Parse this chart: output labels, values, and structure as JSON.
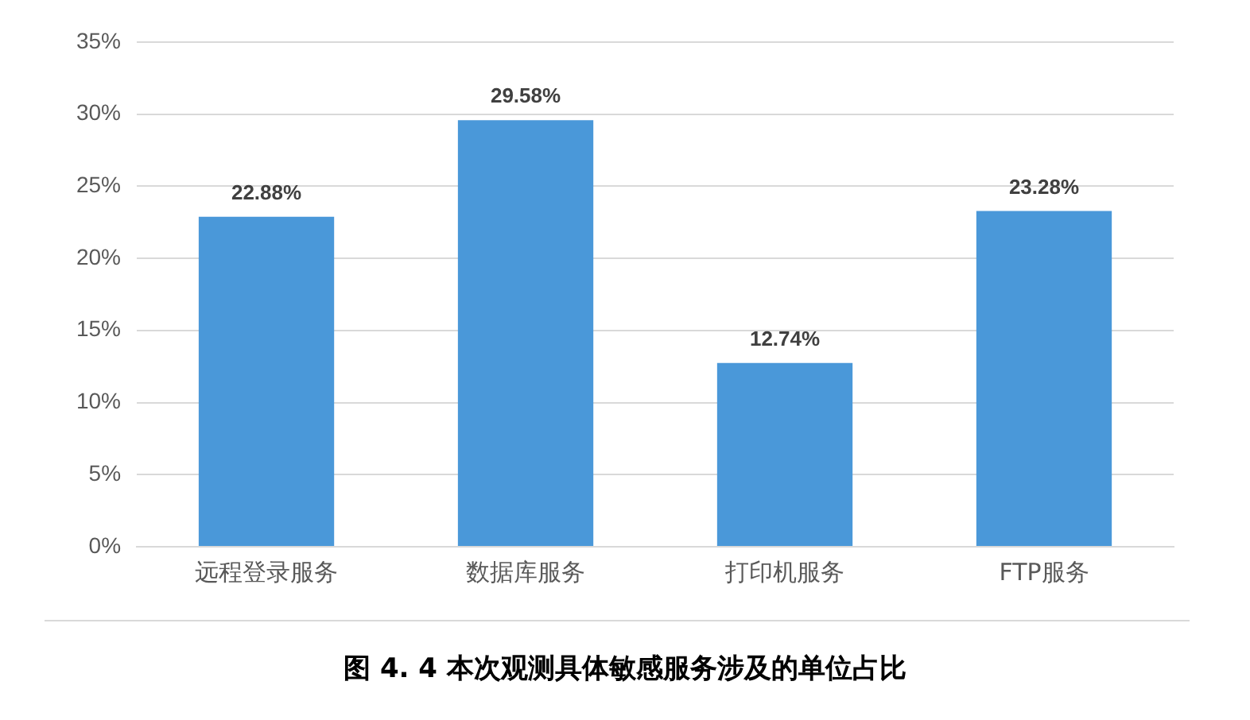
{
  "chart_data": {
    "type": "bar",
    "title": "图 4. 4  本次观测具体敏感服务涉及的单位占比",
    "categories": [
      "远程登录服务",
      "数据库服务",
      "打印机服务",
      "FTP服务"
    ],
    "values": [
      22.88,
      29.58,
      12.74,
      23.28
    ],
    "color": "#4a98d9",
    "value_labels": [
      "22.88%",
      "29.58%",
      "12.74%",
      "23.28%"
    ],
    "ylim": [
      0,
      35
    ],
    "yticks": [
      {
        "value": 0,
        "label": "0%"
      },
      {
        "value": 5,
        "label": "5%"
      },
      {
        "value": 10,
        "label": "10%"
      },
      {
        "value": 15,
        "label": "15%"
      },
      {
        "value": 20,
        "label": "20%"
      },
      {
        "value": 25,
        "label": "25%"
      },
      {
        "value": 30,
        "label": "30%"
      },
      {
        "value": 35,
        "label": "35%"
      }
    ],
    "grid": "y"
  }
}
